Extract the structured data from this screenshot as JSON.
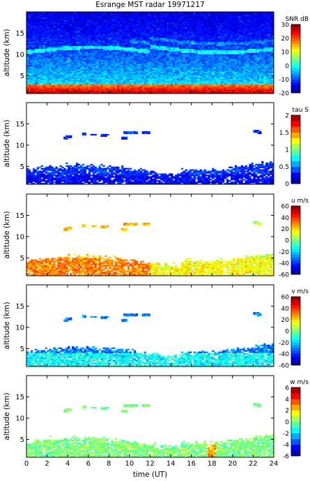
{
  "figure": {
    "title": "Esrange MST radar 19971217",
    "xlabel": "time (UT)"
  },
  "chart_data": [
    {
      "type": "heatmap",
      "ylabel": "altitude (km)",
      "colorbar_label": "SNR dB",
      "x_ticks": [
        0,
        2,
        4,
        6,
        8,
        10,
        12,
        14,
        16,
        18,
        20,
        22,
        24
      ],
      "xlim": [
        0,
        24
      ],
      "y_ticks": [
        5,
        10,
        15
      ],
      "ylim": [
        0.8,
        20
      ],
      "colorbar_ticks": [
        -20,
        -10,
        0,
        10,
        20,
        30
      ],
      "clim": [
        -20,
        30
      ],
      "pattern": "snr",
      "colorbar_steps": 25
    },
    {
      "type": "heatmap",
      "ylabel": "altitude (km)",
      "colorbar_label": "tau S",
      "x_ticks": [
        0,
        2,
        4,
        6,
        8,
        10,
        12,
        14,
        16,
        18,
        20,
        22,
        24
      ],
      "xlim": [
        0,
        24
      ],
      "y_ticks": [
        5,
        10,
        15
      ],
      "ylim": [
        0.8,
        20
      ],
      "colorbar_ticks": [
        0,
        0.5,
        1,
        1.5,
        2
      ],
      "clim": [
        0,
        2
      ],
      "pattern": "tau",
      "colorbar_steps": 12
    },
    {
      "type": "heatmap",
      "ylabel": "altitude (km)",
      "colorbar_label": "u m/s",
      "x_ticks": [
        0,
        2,
        4,
        6,
        8,
        10,
        12,
        14,
        16,
        18,
        20,
        22,
        24
      ],
      "xlim": [
        0,
        24
      ],
      "y_ticks": [
        5,
        10,
        15
      ],
      "ylim": [
        0.8,
        20
      ],
      "colorbar_ticks": [
        -60,
        -40,
        -20,
        0,
        20,
        40,
        60
      ],
      "clim": [
        -60,
        60
      ],
      "pattern": "u",
      "colorbar_steps": 24
    },
    {
      "type": "heatmap",
      "ylabel": "altitude (km)",
      "colorbar_label": "v m/s",
      "x_ticks": [
        0,
        2,
        4,
        6,
        8,
        10,
        12,
        14,
        16,
        18,
        20,
        22,
        24
      ],
      "xlim": [
        0,
        24
      ],
      "y_ticks": [
        5,
        10,
        15
      ],
      "ylim": [
        0.8,
        20
      ],
      "colorbar_ticks": [
        -60,
        -40,
        -20,
        0,
        20,
        40,
        60
      ],
      "clim": [
        -60,
        60
      ],
      "pattern": "v",
      "colorbar_steps": 24
    },
    {
      "type": "heatmap",
      "ylabel": "altitude (km)",
      "colorbar_label": "w m/s",
      "x_ticks": [
        0,
        2,
        4,
        6,
        8,
        10,
        12,
        14,
        16,
        18,
        20,
        22,
        24
      ],
      "xlim": [
        0,
        24
      ],
      "y_ticks": [
        5,
        10,
        15
      ],
      "ylim": [
        0.8,
        20
      ],
      "colorbar_ticks": [
        -6,
        -4,
        -2,
        0,
        2,
        4,
        6
      ],
      "clim": [
        -6,
        6
      ],
      "pattern": "w",
      "colorbar_steps": 12
    }
  ]
}
